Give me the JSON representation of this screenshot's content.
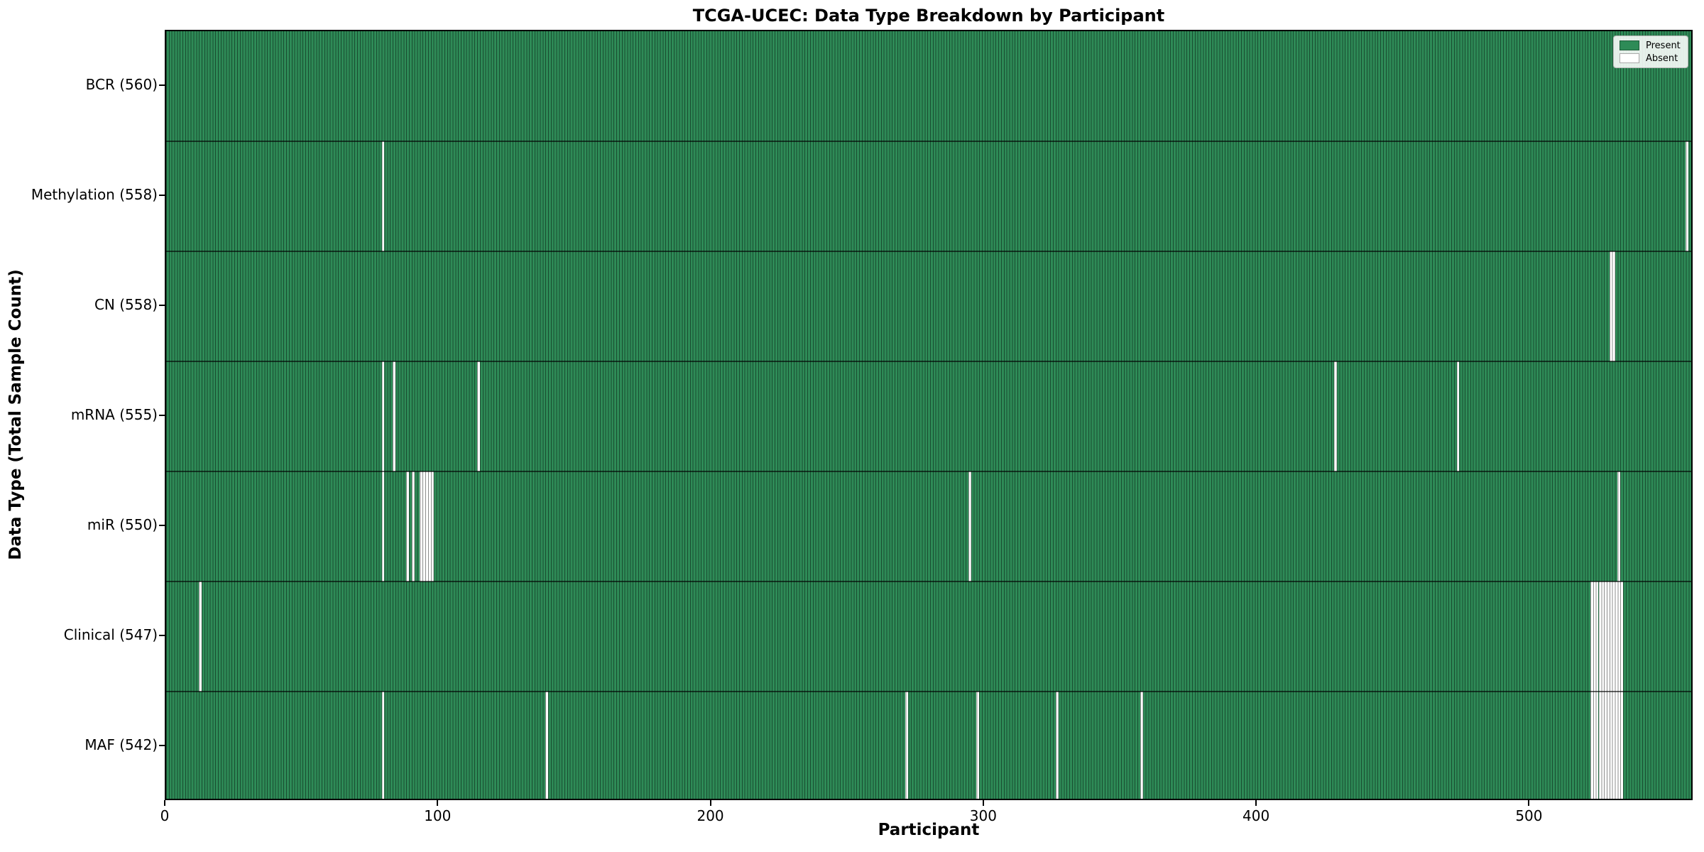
{
  "chart_data": {
    "type": "heatmap",
    "title": "TCGA-UCEC: Data Type Breakdown by Participant",
    "xlabel": "Participant",
    "ylabel": "Data Type (Total Sample Count)",
    "x_ticks": [
      0,
      100,
      200,
      300,
      400,
      500
    ],
    "x_range": [
      0,
      560
    ],
    "n_participants": 560,
    "grid": false,
    "colors": {
      "present": "#2E8B57",
      "absent": "#ffffff",
      "bar_edge_on_green": "rgba(0,0,0,0.45)",
      "present_swatch_border": "#1d5c39",
      "absent_swatch_border": "#aaaaaa"
    },
    "legend": {
      "position": "upper right",
      "entries": [
        {
          "name": "present",
          "label": "Present",
          "color": "#2E8B57"
        },
        {
          "name": "absent",
          "label": "Absent",
          "color": "#ffffff"
        }
      ]
    },
    "rows": [
      {
        "data_type": "BCR",
        "label": "BCR (560)",
        "total_samples": 560,
        "absent_participants": []
      },
      {
        "data_type": "Methylation",
        "label": "Methylation (558)",
        "total_samples": 558,
        "absent_participants": [
          79,
          557
        ]
      },
      {
        "data_type": "CN",
        "label": "CN (558)",
        "total_samples": 558,
        "absent_participants": [
          529,
          530
        ]
      },
      {
        "data_type": "mRNA",
        "label": "mRNA (555)",
        "total_samples": 555,
        "absent_participants": [
          79,
          83,
          114,
          428,
          473
        ]
      },
      {
        "data_type": "miR",
        "label": "miR (550)",
        "total_samples": 550,
        "absent_participants": [
          79,
          88,
          90,
          93,
          94,
          95,
          96,
          97,
          294,
          532
        ]
      },
      {
        "data_type": "Clinical",
        "label": "Clinical (547)",
        "total_samples": 547,
        "absent_participants": [
          12,
          522,
          523,
          524,
          525,
          526,
          527,
          528,
          529,
          530,
          531,
          532,
          533
        ]
      },
      {
        "data_type": "MAF",
        "label": "MAF (542)",
        "total_samples": 542,
        "absent_participants": [
          79,
          139,
          271,
          297,
          326,
          357,
          522,
          523,
          524,
          525,
          526,
          527,
          528,
          529,
          530,
          531,
          532,
          533
        ]
      }
    ]
  }
}
